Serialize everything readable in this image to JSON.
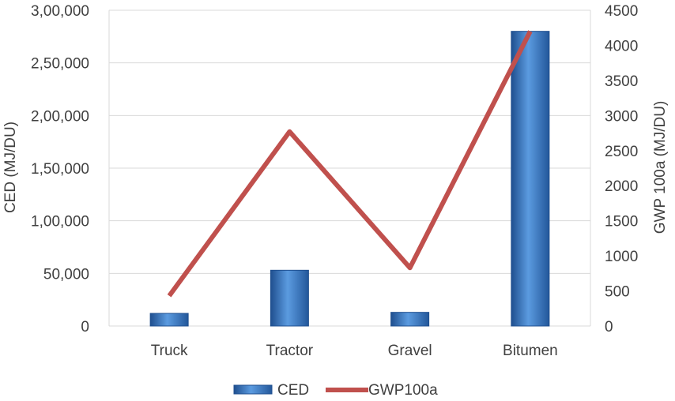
{
  "chart_data": {
    "type": "bar",
    "title": "",
    "categories": [
      "Truck",
      "Tractor",
      "Gravel",
      "Bitumen"
    ],
    "series": [
      {
        "name": "CED",
        "type": "bar",
        "axis": "left",
        "color": "#3d7cc9",
        "values": [
          12000,
          53000,
          13000,
          280000
        ]
      },
      {
        "name": "GWP100a",
        "type": "line",
        "axis": "right",
        "color": "#c0504d",
        "values": [
          430,
          2770,
          830,
          4200
        ]
      }
    ],
    "ylabel_left": "CED (MJ/DU)",
    "ylabel_right": "GWP 100a (MJ/DU)",
    "ylim_left": [
      0,
      300000
    ],
    "ylim_right": [
      0,
      4500
    ],
    "yticks_left": [
      "0",
      "50,000",
      "1,00,000",
      "1,50,000",
      "2,00,000",
      "2,50,000",
      "3,00,000"
    ],
    "yticks_right": [
      "0",
      "500",
      "1000",
      "1500",
      "2000",
      "2500",
      "3000",
      "3500",
      "4000",
      "4500"
    ],
    "grid": true,
    "legend_position": "bottom"
  }
}
